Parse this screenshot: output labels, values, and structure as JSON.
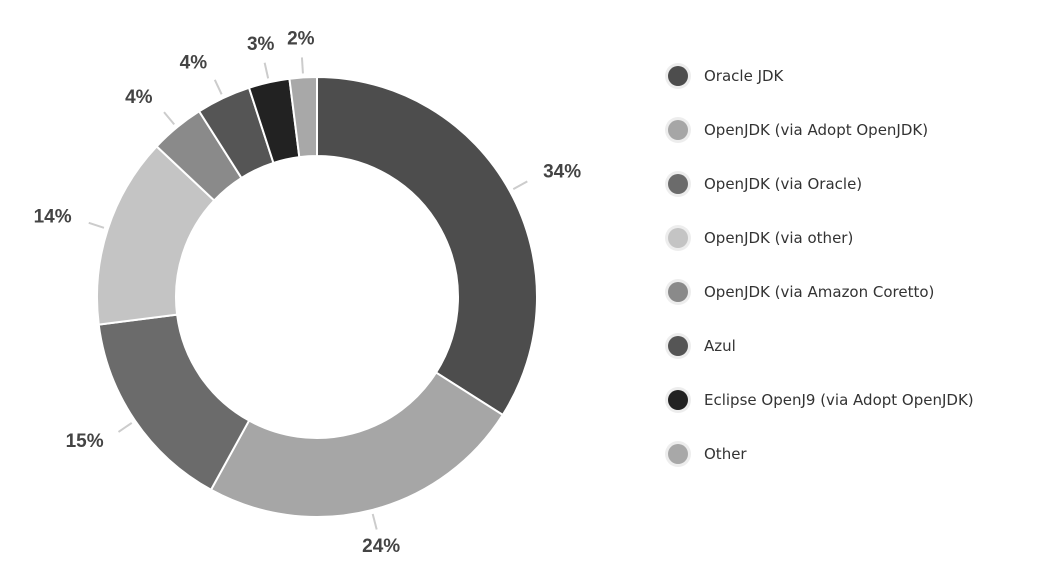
{
  "chart_data": {
    "type": "pie",
    "donut": true,
    "legend_position": "right",
    "categories": [
      "Oracle JDK",
      "OpenJDK (via Adopt OpenJDK)",
      "OpenJDK (via Oracle)",
      "OpenJDK (via other)",
      "OpenJDK (via Amazon Coretto)",
      "Azul",
      "Eclipse OpenJ9 (via Adopt OpenJDK)",
      "Other"
    ],
    "values": [
      34,
      24,
      15,
      14,
      4,
      4,
      3,
      2
    ],
    "labels": [
      "34%",
      "24%",
      "15%",
      "14%",
      "4%",
      "4%",
      "3%",
      "2%"
    ],
    "colors": [
      "#4d4d4d",
      "#a6a6a6",
      "#6b6b6b",
      "#c4c4c4",
      "#8a8a8a",
      "#555555",
      "#222222",
      "#a8a8a8"
    ]
  }
}
